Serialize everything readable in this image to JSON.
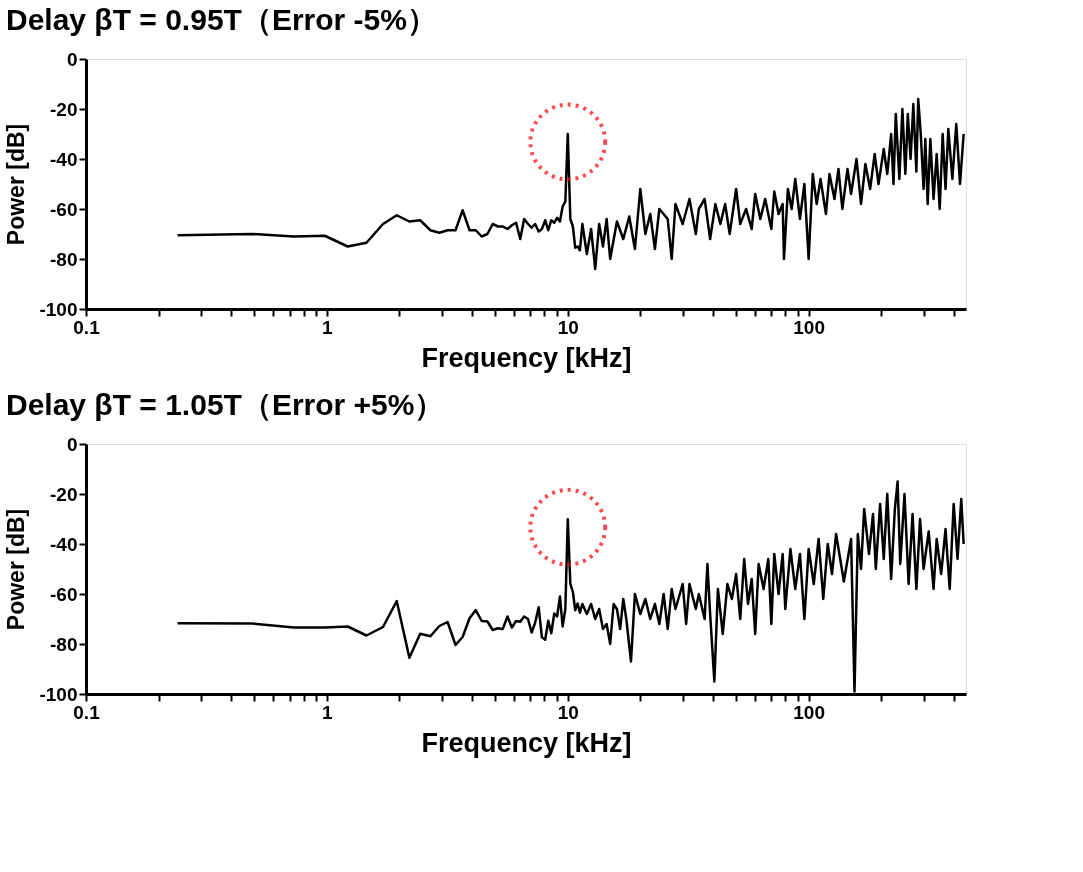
{
  "chart_data": [
    {
      "type": "line",
      "title": "Delay βT = 0.95T（Error -5%）",
      "xlabel": "Frequency [kHz]",
      "ylabel": "Power [dB]",
      "log": "x",
      "grid": false,
      "marker": "none",
      "line_style": "solid",
      "xlim": [
        0.1,
        450
      ],
      "xticks": [
        0.1,
        {
          "value": 0.2,
          "label": null
        },
        {
          "value": 0.3,
          "label": null
        },
        {
          "value": 0.4,
          "label": null
        },
        {
          "value": 0.5,
          "label": null
        },
        {
          "value": 0.6,
          "label": null
        },
        {
          "value": 0.7,
          "label": null
        },
        {
          "value": 0.8,
          "label": null
        },
        {
          "value": 0.9,
          "label": null
        },
        1,
        {
          "value": 2,
          "label": null
        },
        {
          "value": 3,
          "label": null
        },
        {
          "value": 4,
          "label": null
        },
        {
          "value": 5,
          "label": null
        },
        {
          "value": 6,
          "label": null
        },
        {
          "value": 7,
          "label": null
        },
        {
          "value": 8,
          "label": null
        },
        {
          "value": 9,
          "label": null
        },
        10,
        {
          "value": 20,
          "label": null
        },
        {
          "value": 30,
          "label": null
        },
        {
          "value": 40,
          "label": null
        },
        {
          "value": 50,
          "label": null
        },
        {
          "value": 60,
          "label": null
        },
        {
          "value": 70,
          "label": null
        },
        {
          "value": 80,
          "label": null
        },
        {
          "value": 90,
          "label": null
        },
        100,
        {
          "value": 200,
          "label": null
        },
        {
          "value": 300,
          "label": null
        },
        {
          "value": 400,
          "label": null
        }
      ],
      "ylim": [
        -100,
        0
      ],
      "yticks": [
        -100,
        -80,
        -60,
        -40,
        -20,
        0
      ],
      "series": [
        {
          "color": "#000000",
          "x": [
            0.24,
            0.49,
            0.73,
            0.98,
            1.22,
            1.46,
            1.71,
            1.95,
            2.2,
            2.44,
            2.69,
            2.93,
            3.17,
            3.42,
            3.66,
            3.91,
            4.15,
            4.39,
            4.64,
            4.88,
            5.13,
            5.37,
            5.62,
            5.86,
            6.1,
            6.35,
            6.59,
            6.84,
            7.08,
            7.32,
            7.57,
            7.81,
            8.06,
            8.3,
            8.54,
            8.79,
            9.03,
            9.28,
            9.52,
            9.77,
            10.0,
            10.25,
            10.5,
            10.74,
            10.99,
            11.23,
            11.5,
            12,
            12.5,
            13,
            13.5,
            14,
            14.5,
            15,
            16,
            17,
            18,
            19,
            20,
            21,
            22,
            23,
            24,
            26,
            27,
            28,
            30,
            32,
            34,
            35,
            37,
            39,
            41,
            43,
            45,
            47,
            50,
            52,
            55,
            58,
            60,
            63,
            66,
            70,
            72,
            75,
            78,
            79,
            82,
            85,
            88,
            92,
            96,
            100,
            104,
            108,
            112,
            118,
            122,
            128,
            133,
            138,
            145,
            150,
            158,
            165,
            172,
            180,
            188,
            195,
            205,
            212,
            220,
            225,
            230,
            238,
            245,
            252,
            258,
            265,
            272,
            280,
            285,
            292,
            300,
            305,
            312,
            320,
            330,
            340,
            350,
            360,
            370,
            380,
            395,
            410,
            425,
            440
          ],
          "values": [
            -70.5,
            -70,
            -71,
            -70.7,
            -75,
            -73.5,
            -66,
            -62.5,
            -65,
            -64.5,
            -68.5,
            -69.5,
            -68.5,
            -68.5,
            -60.5,
            -68.5,
            -68.5,
            -71,
            -70,
            -66,
            -67,
            -67,
            -68,
            -66.5,
            -65.5,
            -72,
            -64,
            -66,
            -67.5,
            -66,
            -69,
            -68,
            -64.5,
            -68.5,
            -64.5,
            -65.5,
            -63.5,
            -65,
            -59,
            -57,
            -30,
            -64,
            -67,
            -75.5,
            -75,
            -76.5,
            -66,
            -78,
            -68,
            -84,
            -66,
            -75,
            -64,
            -80,
            -65,
            -72,
            -63,
            -76,
            -52,
            -70,
            -62,
            -76,
            -60,
            -64,
            -80,
            -58,
            -66,
            -56,
            -70,
            -60,
            -56,
            -72,
            -58,
            -66,
            -58,
            -70,
            -52,
            -66,
            -60,
            -68,
            -54,
            -64,
            -56,
            -68,
            -53,
            -62,
            -58,
            -80,
            -52,
            -60,
            -48,
            -64,
            -50,
            -80,
            -46,
            -58,
            -48,
            -62,
            -46,
            -56,
            -44,
            -60,
            -44,
            -54,
            -40,
            -58,
            -42,
            -52,
            -38,
            -50,
            -36,
            -46,
            -30,
            -50,
            -22,
            -48,
            -20,
            -46,
            -22,
            -40,
            -18,
            -45,
            -16,
            -30,
            -52,
            -32,
            -58,
            -32,
            -56,
            -38,
            -60,
            -30,
            -52,
            -28,
            -48,
            -26,
            -50,
            -30
          ]
        }
      ]
    },
    {
      "type": "line",
      "title": "Delay βT = 1.05T（Error +5%）",
      "xlabel": "Frequency [kHz]",
      "ylabel": "Power [dB]",
      "log": "x",
      "grid": false,
      "marker": "none",
      "line_style": "solid",
      "xlim": [
        0.1,
        450
      ],
      "xticks": [
        0.1,
        {
          "value": 0.2,
          "label": null
        },
        {
          "value": 0.3,
          "label": null
        },
        {
          "value": 0.4,
          "label": null
        },
        {
          "value": 0.5,
          "label": null
        },
        {
          "value": 0.6,
          "label": null
        },
        {
          "value": 0.7,
          "label": null
        },
        {
          "value": 0.8,
          "label": null
        },
        {
          "value": 0.9,
          "label": null
        },
        1,
        {
          "value": 2,
          "label": null
        },
        {
          "value": 3,
          "label": null
        },
        {
          "value": 4,
          "label": null
        },
        {
          "value": 5,
          "label": null
        },
        {
          "value": 6,
          "label": null
        },
        {
          "value": 7,
          "label": null
        },
        {
          "value": 8,
          "label": null
        },
        {
          "value": 9,
          "label": null
        },
        10,
        {
          "value": 20,
          "label": null
        },
        {
          "value": 30,
          "label": null
        },
        {
          "value": 40,
          "label": null
        },
        {
          "value": 50,
          "label": null
        },
        {
          "value": 60,
          "label": null
        },
        {
          "value": 70,
          "label": null
        },
        {
          "value": 80,
          "label": null
        },
        {
          "value": 90,
          "label": null
        },
        100,
        {
          "value": 200,
          "label": null
        },
        {
          "value": 300,
          "label": null
        },
        {
          "value": 400,
          "label": null
        }
      ],
      "ylim": [
        -100,
        0
      ],
      "yticks": [
        -100,
        -80,
        -60,
        -40,
        -20,
        0
      ],
      "series": [
        {
          "color": "#000000",
          "x": [
            0.24,
            0.49,
            0.73,
            0.98,
            1.22,
            1.46,
            1.71,
            1.95,
            2.2,
            2.44,
            2.69,
            2.93,
            3.17,
            3.42,
            3.66,
            3.91,
            4.15,
            4.39,
            4.64,
            4.88,
            5.13,
            5.37,
            5.62,
            5.86,
            6.1,
            6.35,
            6.59,
            6.84,
            7.08,
            7.32,
            7.57,
            7.81,
            8.06,
            8.3,
            8.54,
            8.79,
            9.03,
            9.28,
            9.52,
            9.77,
            10.0,
            10.25,
            10.5,
            10.74,
            10.99,
            11.23,
            11.5,
            12,
            12.5,
            13,
            13.5,
            14,
            14.5,
            15,
            15.5,
            16,
            16.5,
            17,
            17.5,
            18.3,
            19,
            20,
            21,
            22,
            23,
            24,
            25,
            26,
            27,
            28,
            30,
            31,
            32,
            34,
            35,
            37,
            38,
            39,
            40.6,
            42,
            44,
            46,
            48,
            50,
            52,
            54,
            56,
            58,
            60,
            62,
            65,
            68,
            70,
            72,
            75,
            78,
            80,
            84,
            88,
            92,
            96,
            100,
            105,
            110,
            115,
            120,
            125,
            130,
            140,
            150,
            155,
            160,
            165,
            170,
            178,
            185,
            190,
            198,
            205,
            212,
            220,
            228,
            234,
            240,
            250,
            260,
            270,
            280,
            290,
            300,
            315,
            330,
            340,
            355,
            370,
            385,
            400,
            415,
            430,
            440
          ],
          "values": [
            -71.7,
            -71.8,
            -73.4,
            -73.4,
            -73.0,
            -76.6,
            -73.2,
            -62.8,
            -85.5,
            -75.9,
            -76.9,
            -72.8,
            -71.2,
            -80.4,
            -77.2,
            -69.7,
            -66.4,
            -70.8,
            -71.0,
            -74.4,
            -73.7,
            -74.0,
            -69.0,
            -73.4,
            -70.8,
            -71.1,
            -69.0,
            -70.0,
            -75.4,
            -71.5,
            -65.3,
            -77.3,
            -78.3,
            -70.7,
            -75.7,
            -67.8,
            -69.0,
            -61.0,
            -73.0,
            -66.0,
            -30.1,
            -55.9,
            -59.2,
            -66.5,
            -63.8,
            -67.5,
            -64,
            -68,
            -64,
            -70,
            -66,
            -74,
            -72,
            -80,
            -64,
            -66,
            -74,
            -62,
            -70,
            -87,
            -60,
            -68,
            -62,
            -70,
            -64,
            -72,
            -60,
            -74,
            -58,
            -66,
            -56,
            -72,
            -56,
            -66,
            -60,
            -70,
            -48,
            -68,
            -95,
            -58,
            -76,
            -56,
            -62,
            -52,
            -70,
            -46,
            -64,
            -54,
            -76,
            -48,
            -58,
            -46,
            -72,
            -44,
            -60,
            -44,
            -66,
            -42,
            -58,
            -44,
            -70,
            -42,
            -56,
            -38,
            -62,
            -40,
            -52,
            -36,
            -55,
            -38,
            -99,
            -36,
            -50,
            -26,
            -44,
            -28,
            -50,
            -24,
            -46,
            -20,
            -54,
            -26,
            -15,
            -48,
            -20,
            -56,
            -28,
            -58,
            -30,
            -50,
            -35,
            -58,
            -38,
            -52,
            -34,
            -58,
            -24,
            -46,
            -22,
            -40
          ]
        }
      ]
    }
  ]
}
